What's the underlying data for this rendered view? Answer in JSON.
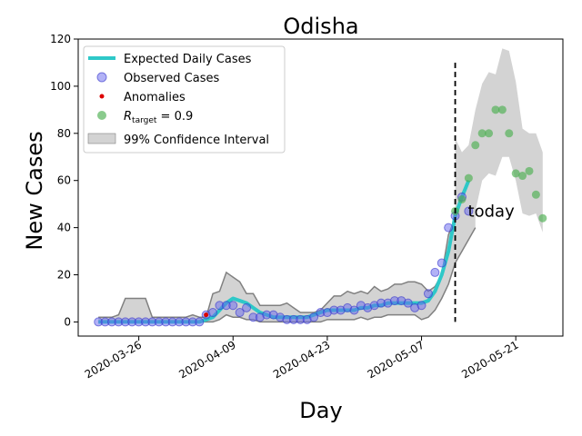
{
  "chart_data": {
    "type": "line",
    "title": "Odisha",
    "xlabel": "Day",
    "ylabel": "New Cases",
    "grid": false,
    "legend_placement": "top-left",
    "x_start_date": "2020-03-20",
    "xlim": [
      "2020-03-17",
      "2020-05-28"
    ],
    "ylim": [
      -6,
      120
    ],
    "x_ticks": [
      "2020-03-26",
      "2020-04-09",
      "2020-04-23",
      "2020-05-07",
      "2020-05-21"
    ],
    "y_ticks": [
      0,
      20,
      40,
      60,
      80,
      100,
      120
    ],
    "colors": {
      "expected": "#2ec8c8",
      "observed": "#6666ee",
      "anomaly": "#dd0000",
      "target": "#4caf50",
      "ci_fill": "#d3d3d3",
      "ci_edge": "#808080"
    },
    "legend": [
      {
        "key": "expected",
        "label": "Expected Daily Cases"
      },
      {
        "key": "observed",
        "label": "Observed Cases"
      },
      {
        "key": "anomaly",
        "label": "Anomalies"
      },
      {
        "key": "target",
        "label": "R_target = 0.9"
      },
      {
        "key": "ci",
        "label": "99% Confidence Interval"
      }
    ],
    "annotation": {
      "text": "today",
      "date": "2020-05-12",
      "y": 47
    },
    "today_line": {
      "date": "2020-05-12",
      "y_top": 110
    },
    "observed": [
      0,
      0,
      0,
      0,
      0,
      0,
      0,
      0,
      0,
      0,
      0,
      0,
      0,
      0,
      0,
      0,
      3,
      4,
      7,
      7,
      7,
      4,
      6,
      2,
      2,
      3,
      3,
      2,
      1,
      1,
      1,
      1,
      2,
      4,
      4,
      5,
      5,
      6,
      5,
      7,
      6,
      7,
      8,
      8,
      9,
      9,
      8,
      6,
      7,
      12,
      21,
      25,
      40,
      45,
      53,
      47
    ],
    "expected": [
      0,
      0,
      0,
      0,
      0,
      0,
      0,
      0,
      0,
      0,
      0,
      0,
      0,
      0,
      0,
      0,
      1,
      2,
      5,
      8,
      10,
      9,
      8,
      6,
      4,
      3,
      2,
      2,
      2,
      2,
      2,
      2,
      3,
      4,
      5,
      5,
      5,
      5,
      5,
      6,
      6,
      7,
      7,
      8,
      8,
      8,
      8,
      8,
      8,
      9,
      13,
      20,
      30,
      45,
      53,
      60
    ],
    "anomalies": [
      {
        "date": "2020-04-05",
        "y": 3
      }
    ],
    "ci_upper": [
      2,
      2,
      2,
      3,
      10,
      10,
      10,
      10,
      2,
      2,
      2,
      2,
      2,
      2,
      3,
      2,
      2,
      12,
      13,
      21,
      19,
      17,
      12,
      12,
      7,
      7,
      7,
      7,
      8,
      6,
      4,
      4,
      4,
      5,
      8,
      11,
      11,
      13,
      12,
      13,
      12,
      15,
      13,
      14,
      16,
      16,
      17,
      17,
      16,
      13,
      15,
      20,
      37,
      44,
      65,
      70,
      78
    ],
    "ci_lower": [
      0,
      0,
      0,
      0,
      0,
      0,
      0,
      0,
      0,
      0,
      0,
      0,
      0,
      0,
      0,
      0,
      0,
      0,
      1,
      3,
      2,
      2,
      1,
      1,
      0,
      0,
      0,
      0,
      0,
      0,
      0,
      0,
      0,
      0,
      1,
      1,
      1,
      1,
      1,
      2,
      1,
      2,
      2,
      3,
      3,
      3,
      3,
      3,
      1,
      2,
      5,
      10,
      16,
      25,
      30,
      35,
      40
    ],
    "forecast_start_date": "2020-05-12",
    "target": [
      47,
      52,
      61,
      75,
      80,
      80,
      90,
      90,
      80,
      63,
      62,
      64,
      54,
      44
    ],
    "forecast_ci_upper": [
      78,
      72,
      75,
      90,
      101,
      106,
      105,
      116,
      115,
      102,
      82,
      80,
      80,
      72
    ],
    "forecast_ci_lower": [
      40,
      38,
      40,
      47,
      60,
      63,
      62,
      70,
      70,
      60,
      46,
      45,
      46,
      38
    ]
  }
}
